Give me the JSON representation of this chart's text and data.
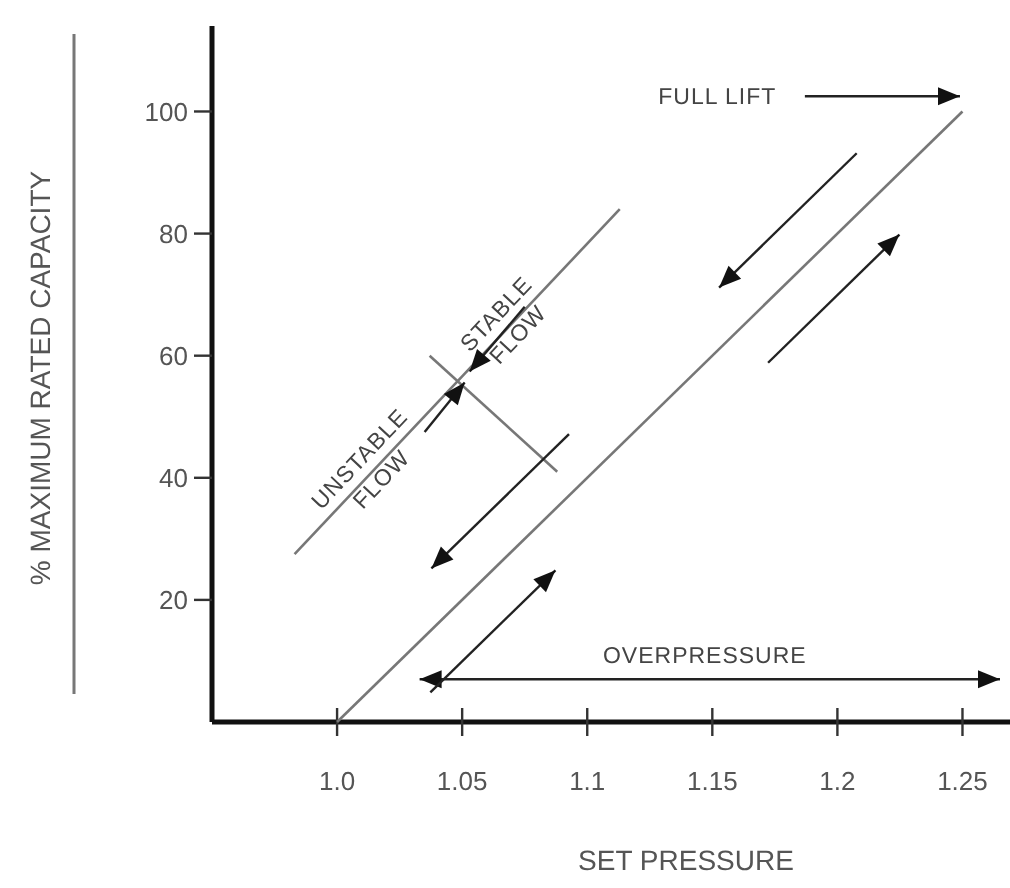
{
  "chart_data": {
    "type": "line",
    "xlabel": "SET PRESSURE",
    "ylabel": "% MAXIMUM RATED CAPACITY",
    "xlim": [
      0.95,
      1.265
    ],
    "ylim": [
      0,
      114
    ],
    "xticks": [
      {
        "value": 1.0,
        "label": "1.0"
      },
      1.05,
      1.1,
      1.15,
      1.2,
      1.25
    ],
    "yticks": [
      20,
      40,
      60,
      80,
      100
    ],
    "grid": false,
    "marker": "none",
    "line_style": "solid",
    "series": [
      {
        "color": "#777777",
        "x": [
          1.0,
          1.25
        ],
        "values": [
          0,
          100
        ]
      },
      {
        "color": "#777777",
        "x": [
          0.983,
          1.113
        ],
        "values": [
          27.5,
          84
        ]
      },
      {
        "color": "#777777",
        "x": [
          1.037,
          1.088
        ],
        "values": [
          60,
          41
        ]
      }
    ],
    "annotations": [
      "FULL LIFT",
      "OVERPRESSURE",
      "STABLE FLOW",
      "UNSTABLE FLOW"
    ]
  }
}
